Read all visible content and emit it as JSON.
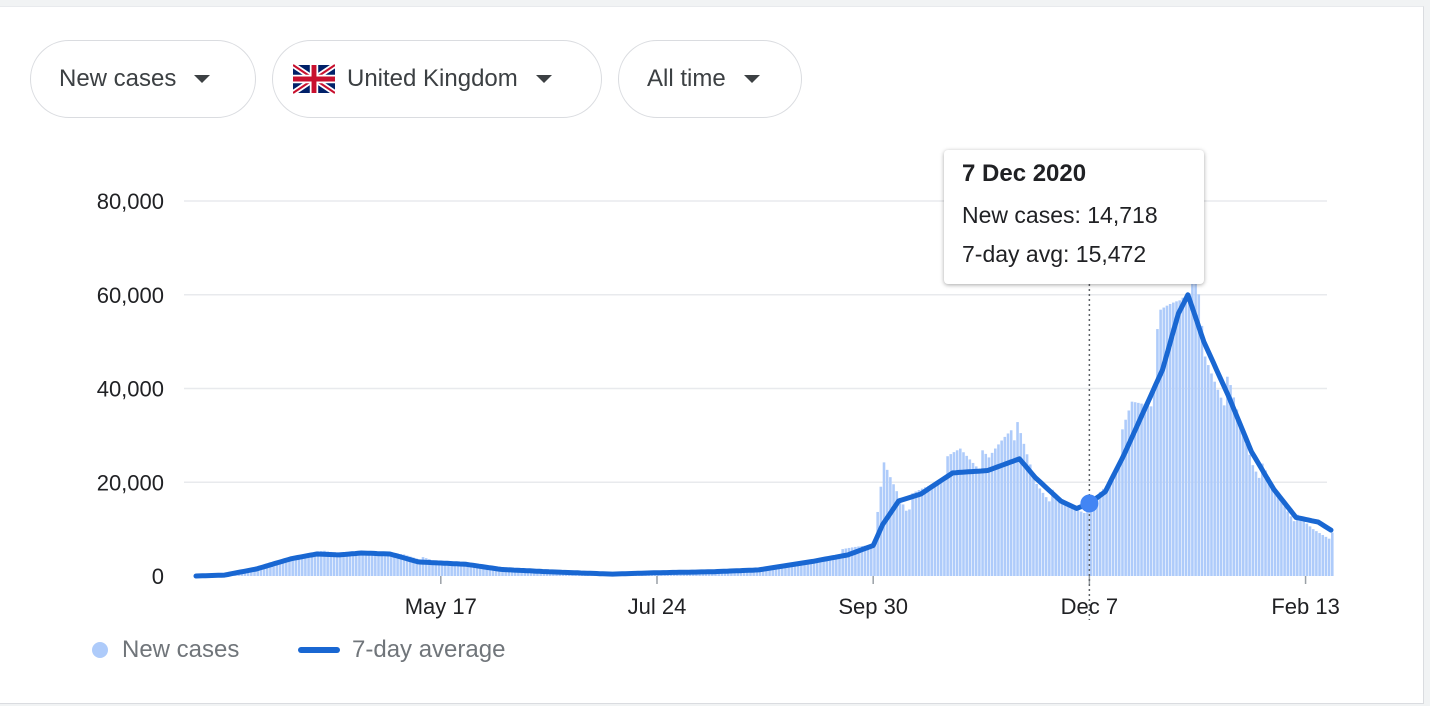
{
  "controls": {
    "metric_label": "New cases",
    "region_label": "United Kingdom",
    "range_label": "All time"
  },
  "tooltip": {
    "date": "7 Dec 2020",
    "new_cases_label": "New cases:",
    "new_cases_value": "14,718",
    "avg_label": "7-day avg:",
    "avg_value": "15,472"
  },
  "legend": {
    "bars_label": "New cases",
    "line_label": "7-day average"
  },
  "colors": {
    "bars": "#aecbfa",
    "line": "#1967d2",
    "grid": "#e8eaed",
    "axis_text": "#202124"
  },
  "chart_data": {
    "type": "bar+line",
    "x_range": [
      "2020-03-01",
      "2021-02-21"
    ],
    "ylim": [
      0,
      80000
    ],
    "y_ticks": [
      0,
      20000,
      40000,
      60000,
      80000
    ],
    "y_tick_labels": [
      "0",
      "20,000",
      "40,000",
      "60,000",
      "80,000"
    ],
    "x_ticks": [
      {
        "date": "2020-05-17",
        "label": "May 17"
      },
      {
        "date": "2020-07-24",
        "label": "Jul 24"
      },
      {
        "date": "2020-09-30",
        "label": "Sep 30"
      },
      {
        "date": "2020-12-07",
        "label": "Dec 7"
      },
      {
        "date": "2021-02-13",
        "label": "Feb 13"
      }
    ],
    "highlight": {
      "date": "2020-12-07",
      "new_cases": 14718,
      "avg": 15472
    },
    "series": [
      {
        "name": "New cases",
        "kind": "bar",
        "points": [
          [
            "2020-03-01",
            30
          ],
          [
            "2020-03-15",
            800
          ],
          [
            "2020-03-29",
            3500
          ],
          [
            "2020-04-10",
            5100
          ],
          [
            "2020-04-24",
            4700
          ],
          [
            "2020-05-05",
            4600
          ],
          [
            "2020-05-17",
            2800
          ],
          [
            "2020-06-01",
            2000
          ],
          [
            "2020-06-15",
            1200
          ],
          [
            "2020-07-01",
            900
          ],
          [
            "2020-07-15",
            500
          ],
          [
            "2020-07-24",
            700
          ],
          [
            "2020-08-10",
            900
          ],
          [
            "2020-08-25",
            1200
          ],
          [
            "2020-09-10",
            3200
          ],
          [
            "2020-09-25",
            6300
          ],
          [
            "2020-09-30",
            7300
          ],
          [
            "2020-10-03",
            23000
          ],
          [
            "2020-10-10",
            15000
          ],
          [
            "2020-10-20",
            21000
          ],
          [
            "2020-10-27",
            26700
          ],
          [
            "2020-11-05",
            24000
          ],
          [
            "2020-11-12",
            33500
          ],
          [
            "2020-11-20",
            20000
          ],
          [
            "2020-11-28",
            15000
          ],
          [
            "2020-12-07",
            14718
          ],
          [
            "2020-12-14",
            21500
          ],
          [
            "2020-12-20",
            35900
          ],
          [
            "2020-12-26",
            39000
          ],
          [
            "2020-12-29",
            53000
          ],
          [
            "2021-01-04",
            61000
          ],
          [
            "2021-01-08",
            68000
          ],
          [
            "2021-01-12",
            46000
          ],
          [
            "2021-01-20",
            38000
          ],
          [
            "2021-01-27",
            25000
          ],
          [
            "2021-02-03",
            18000
          ],
          [
            "2021-02-10",
            12000
          ],
          [
            "2021-02-15",
            10000
          ],
          [
            "2021-02-21",
            8500
          ]
        ]
      },
      {
        "name": "7-day average",
        "kind": "line",
        "points": [
          [
            "2020-03-01",
            0
          ],
          [
            "2020-03-10",
            200
          ],
          [
            "2020-03-20",
            1500
          ],
          [
            "2020-03-31",
            3700
          ],
          [
            "2020-04-08",
            4700
          ],
          [
            "2020-04-15",
            4500
          ],
          [
            "2020-04-22",
            4900
          ],
          [
            "2020-05-01",
            4700
          ],
          [
            "2020-05-10",
            3000
          ],
          [
            "2020-05-25",
            2500
          ],
          [
            "2020-06-05",
            1400
          ],
          [
            "2020-06-20",
            900
          ],
          [
            "2020-07-10",
            400
          ],
          [
            "2020-07-24",
            700
          ],
          [
            "2020-08-10",
            900
          ],
          [
            "2020-08-25",
            1300
          ],
          [
            "2020-09-10",
            3000
          ],
          [
            "2020-09-22",
            4500
          ],
          [
            "2020-09-30",
            6500
          ],
          [
            "2020-10-03",
            11000
          ],
          [
            "2020-10-08",
            16000
          ],
          [
            "2020-10-15",
            17500
          ],
          [
            "2020-10-25",
            22000
          ],
          [
            "2020-11-05",
            22500
          ],
          [
            "2020-11-15",
            25000
          ],
          [
            "2020-11-20",
            21000
          ],
          [
            "2020-11-28",
            16000
          ],
          [
            "2020-12-03",
            14400
          ],
          [
            "2020-12-07",
            15472
          ],
          [
            "2020-12-12",
            18000
          ],
          [
            "2020-12-18",
            26000
          ],
          [
            "2020-12-24",
            35000
          ],
          [
            "2020-12-30",
            44000
          ],
          [
            "2021-01-04",
            56000
          ],
          [
            "2021-01-07",
            60000
          ],
          [
            "2021-01-12",
            50000
          ],
          [
            "2021-01-20",
            38000
          ],
          [
            "2021-01-27",
            26500
          ],
          [
            "2021-02-03",
            18500
          ],
          [
            "2021-02-10",
            12500
          ],
          [
            "2021-02-17",
            11500
          ],
          [
            "2021-02-21",
            9800
          ]
        ]
      }
    ]
  }
}
